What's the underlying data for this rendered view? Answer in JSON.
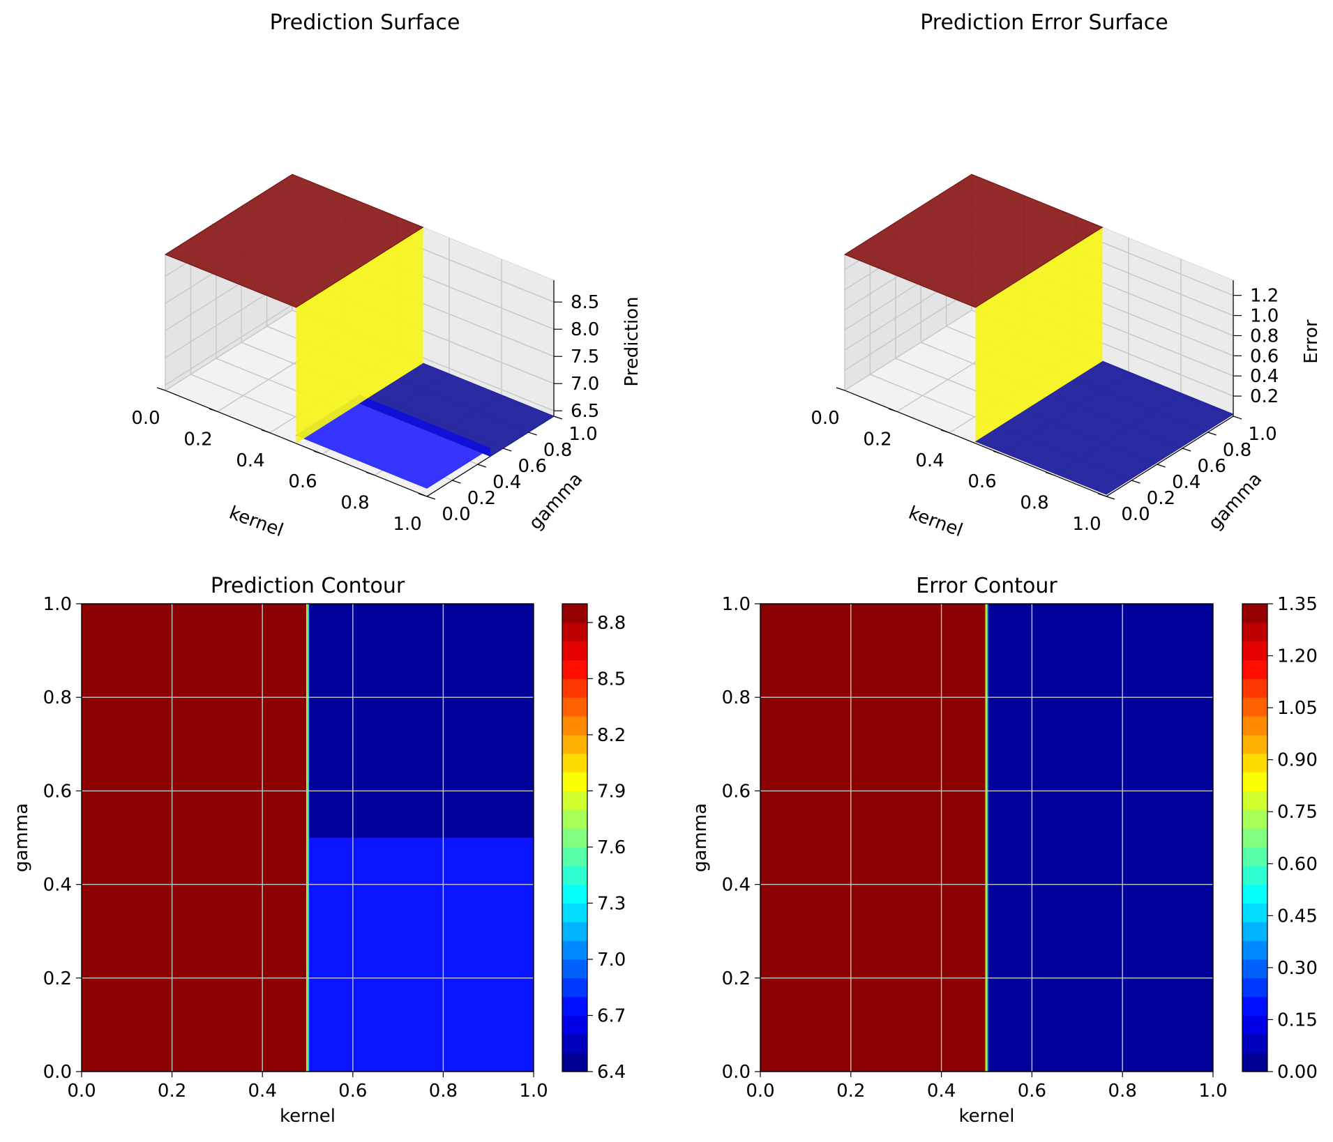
{
  "chart_data": [
    {
      "type": "surface3d",
      "title": "Prediction Surface",
      "xlabel": "kernel",
      "ylabel": "gamma",
      "zlabel": "Prediction",
      "xticks": [
        "0.0",
        "0.2",
        "0.4",
        "0.6",
        "0.8",
        "1.0"
      ],
      "yticks": [
        "0.0",
        "0.2",
        "0.4",
        "0.6",
        "0.8",
        "1.0"
      ],
      "zticks": [
        "6.5",
        "7.0",
        "7.5",
        "8.0",
        "8.5"
      ],
      "xlim": [
        0,
        1
      ],
      "ylim": [
        0,
        1
      ],
      "zlim": [
        6.4,
        8.9
      ],
      "regions": [
        {
          "kernel": [
            0.0,
            0.5
          ],
          "gamma": [
            0.0,
            1.0
          ],
          "z": 8.9,
          "color": "#8b1a1a"
        },
        {
          "kernel": [
            0.5,
            1.0
          ],
          "gamma": [
            0.0,
            0.5
          ],
          "z": 6.55,
          "color": "#2a2aff"
        },
        {
          "kernel": [
            0.5,
            1.0
          ],
          "gamma": [
            0.5,
            1.0
          ],
          "z": 6.4,
          "color": "#1f1f9e"
        }
      ],
      "step_color": "#f5f51a"
    },
    {
      "type": "surface3d",
      "title": "Prediction Error Surface",
      "xlabel": "kernel",
      "ylabel": "gamma",
      "zlabel": "Error",
      "xticks": [
        "0.0",
        "0.2",
        "0.4",
        "0.6",
        "0.8",
        "1.0"
      ],
      "yticks": [
        "0.0",
        "0.2",
        "0.4",
        "0.6",
        "0.8",
        "1.0"
      ],
      "zticks": [
        "0.2",
        "0.4",
        "0.6",
        "0.8",
        "1.0",
        "1.2"
      ],
      "xlim": [
        0,
        1
      ],
      "ylim": [
        0,
        1
      ],
      "zlim": [
        0.0,
        1.35
      ],
      "regions": [
        {
          "kernel": [
            0.0,
            0.5
          ],
          "gamma": [
            0.0,
            1.0
          ],
          "z": 1.35,
          "color": "#8b1a1a"
        },
        {
          "kernel": [
            0.5,
            1.0
          ],
          "gamma": [
            0.0,
            1.0
          ],
          "z": 0.02,
          "color": "#1f1f9e"
        }
      ],
      "step_color": "#f5f51a"
    },
    {
      "type": "heatmap",
      "title": "Prediction Contour",
      "xlabel": "kernel",
      "ylabel": "gamma",
      "xticks": [
        "0.0",
        "0.2",
        "0.4",
        "0.6",
        "0.8",
        "1.0"
      ],
      "yticks": [
        "0.0",
        "0.2",
        "0.4",
        "0.6",
        "0.8",
        "1.0"
      ],
      "xlim": [
        0,
        1
      ],
      "ylim": [
        0,
        1
      ],
      "regions": [
        {
          "kernel": [
            0.0,
            0.5
          ],
          "gamma": [
            0.0,
            1.0
          ],
          "value": 8.9,
          "color": "#8b0000"
        },
        {
          "kernel": [
            0.5,
            1.0
          ],
          "gamma": [
            0.5,
            1.0
          ],
          "value": 6.45,
          "color": "#00009a"
        },
        {
          "kernel": [
            0.5,
            1.0
          ],
          "gamma": [
            0.0,
            0.5
          ],
          "value": 6.6,
          "color": "#0a14ff"
        }
      ],
      "colorbar": {
        "range": [
          6.4,
          8.9
        ],
        "ticks": [
          "6.4",
          "6.7",
          "7.0",
          "7.3",
          "7.6",
          "7.9",
          "8.2",
          "8.5",
          "8.8"
        ],
        "tick_values": [
          6.4,
          6.7,
          7.0,
          7.3,
          7.6,
          7.9,
          8.2,
          8.5,
          8.8
        ]
      },
      "grid": true
    },
    {
      "type": "heatmap",
      "title": "Error Contour",
      "xlabel": "kernel",
      "ylabel": "gamma",
      "xticks": [
        "0.0",
        "0.2",
        "0.4",
        "0.6",
        "0.8",
        "1.0"
      ],
      "yticks": [
        "0.0",
        "0.2",
        "0.4",
        "0.6",
        "0.8",
        "1.0"
      ],
      "xlim": [
        0,
        1
      ],
      "ylim": [
        0,
        1
      ],
      "regions": [
        {
          "kernel": [
            0.0,
            0.5
          ],
          "gamma": [
            0.0,
            1.0
          ],
          "value": 1.35,
          "color": "#8b0000"
        },
        {
          "kernel": [
            0.5,
            1.0
          ],
          "gamma": [
            0.0,
            1.0
          ],
          "value": 0.02,
          "color": "#00009a"
        }
      ],
      "colorbar": {
        "range": [
          0.0,
          1.35
        ],
        "ticks": [
          "0.00",
          "0.15",
          "0.30",
          "0.45",
          "0.60",
          "0.75",
          "0.90",
          "1.05",
          "1.20",
          "1.35"
        ],
        "tick_values": [
          0.0,
          0.15,
          0.3,
          0.45,
          0.6,
          0.75,
          0.9,
          1.05,
          1.2,
          1.35
        ]
      },
      "grid": true
    }
  ]
}
